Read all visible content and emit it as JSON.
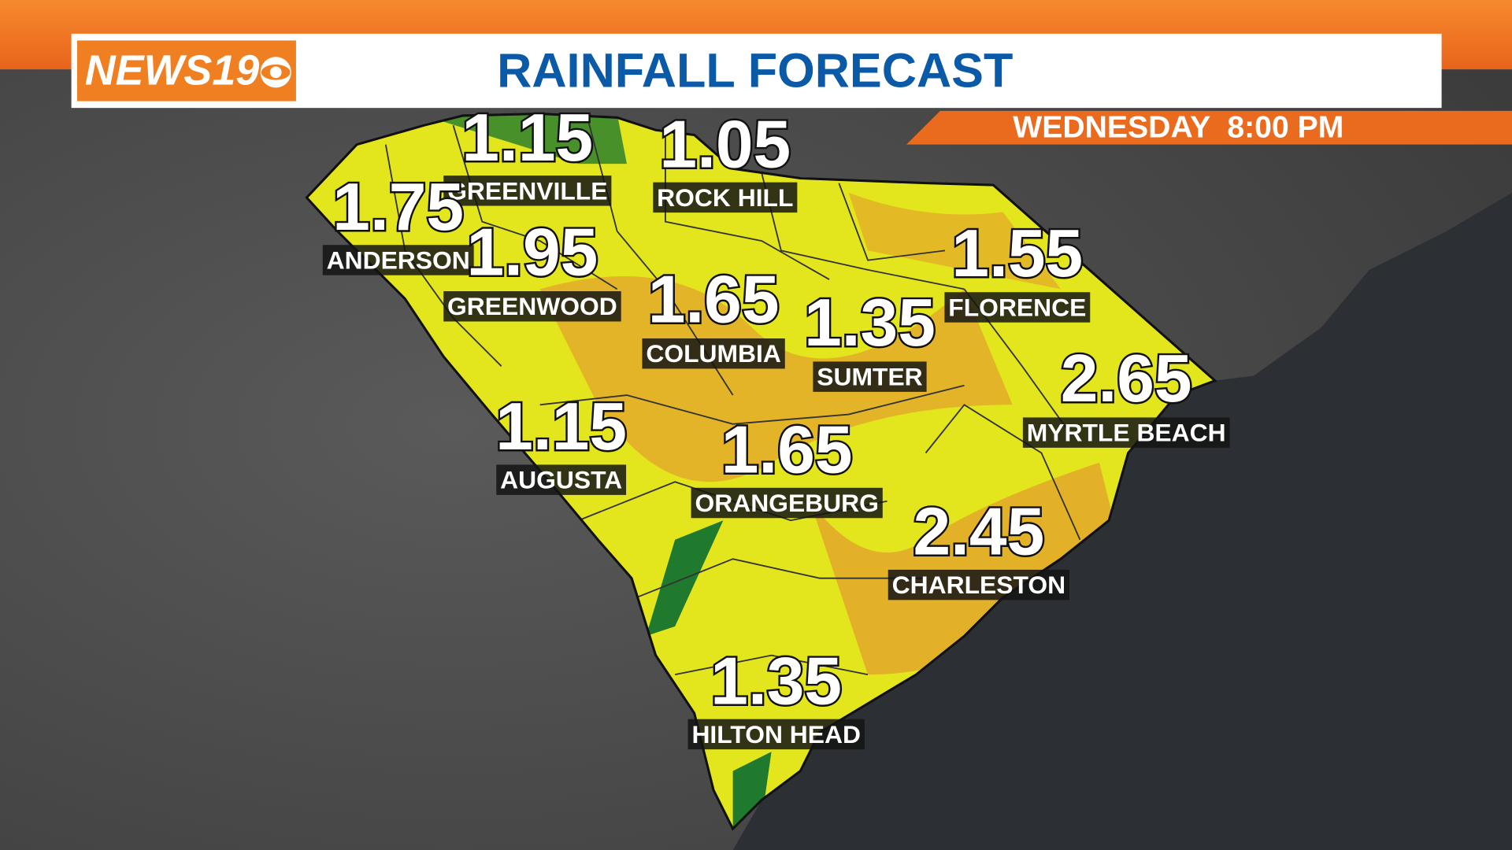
{
  "header": {
    "logo": "NEWS19",
    "title": "RAINFALL FORECAST",
    "subtitle": "WEDNESDAY  8:00 PM"
  },
  "cities": [
    {
      "name": "GREENVILLE",
      "value": 1.15
    },
    {
      "name": "ROCK HILL",
      "value": 1.05
    },
    {
      "name": "ANDERSON",
      "value": 1.75
    },
    {
      "name": "GREENWOOD",
      "value": 1.95
    },
    {
      "name": "FLORENCE",
      "value": 1.55
    },
    {
      "name": "COLUMBIA",
      "value": 1.65
    },
    {
      "name": "SUMTER",
      "value": 1.35
    },
    {
      "name": "MYRTLE BEACH",
      "value": 2.65
    },
    {
      "name": "AUGUSTA",
      "value": 1.15
    },
    {
      "name": "ORANGEBURG",
      "value": 1.65
    },
    {
      "name": "CHARLESTON",
      "value": 2.45
    },
    {
      "name": "HILTON HEAD",
      "value": 1.35
    }
  ]
}
